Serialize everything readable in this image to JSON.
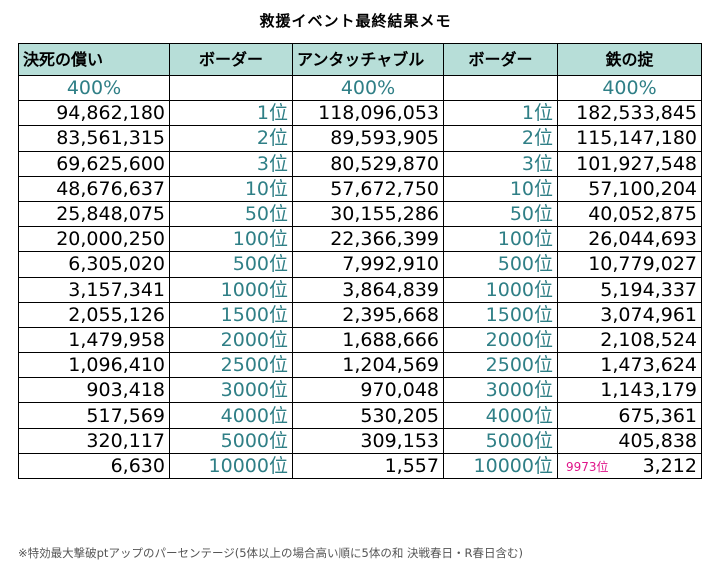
{
  "title": "救援イベント最終結果メモ",
  "headers": [
    "決死の償い",
    "ボーダー",
    "アンタッチャブル",
    "ボーダー",
    "鉄の掟"
  ],
  "percent_row": [
    "400%",
    "",
    "400%",
    "",
    "400%"
  ],
  "rows": [
    {
      "c1": "94,862,180",
      "rank1": "1位",
      "c2": "118,096,053",
      "rank2": "1位",
      "c3": "182,533,845"
    },
    {
      "c1": "83,561,315",
      "rank1": "2位",
      "c2": "89,593,905",
      "rank2": "2位",
      "c3": "115,147,180"
    },
    {
      "c1": "69,625,600",
      "rank1": "3位",
      "c2": "80,529,870",
      "rank2": "3位",
      "c3": "101,927,548"
    },
    {
      "c1": "48,676,637",
      "rank1": "10位",
      "c2": "57,672,750",
      "rank2": "10位",
      "c3": "57,100,204"
    },
    {
      "c1": "25,848,075",
      "rank1": "50位",
      "c2": "30,155,286",
      "rank2": "50位",
      "c3": "40,052,875"
    },
    {
      "c1": "20,000,250",
      "rank1": "100位",
      "c2": "22,366,399",
      "rank2": "100位",
      "c3": "26,044,693"
    },
    {
      "c1": "6,305,020",
      "rank1": "500位",
      "c2": "7,992,910",
      "rank2": "500位",
      "c3": "10,779,027"
    },
    {
      "c1": "3,157,341",
      "rank1": "1000位",
      "c2": "3,864,839",
      "rank2": "1000位",
      "c3": "5,194,337"
    },
    {
      "c1": "2,055,126",
      "rank1": "1500位",
      "c2": "2,395,668",
      "rank2": "1500位",
      "c3": "3,074,961"
    },
    {
      "c1": "1,479,958",
      "rank1": "2000位",
      "c2": "1,688,666",
      "rank2": "2000位",
      "c3": "2,108,524"
    },
    {
      "c1": "1,096,410",
      "rank1": "2500位",
      "c2": "1,204,569",
      "rank2": "2500位",
      "c3": "1,473,624"
    },
    {
      "c1": "903,418",
      "rank1": "3000位",
      "c2": "970,048",
      "rank2": "3000位",
      "c3": "1,143,179"
    },
    {
      "c1": "517,569",
      "rank1": "4000位",
      "c2": "530,205",
      "rank2": "4000位",
      "c3": "675,361"
    },
    {
      "c1": "320,117",
      "rank1": "5000位",
      "c2": "309,153",
      "rank2": "5000位",
      "c3": "405,838"
    },
    {
      "c1": "6,630",
      "rank1": "10000位",
      "c2": "1,557",
      "rank2": "10000位",
      "c3": "3,212",
      "c3_note": "9973位"
    }
  ],
  "footnote": "※特効最大撃破ptアップのパーセンテージ(5体以上の場合高い順に5体の和 決戦春日・R春日含む)",
  "colors": {
    "header_bg": "#b7ded8",
    "rank_text": "#2f7f86",
    "note_text": "#e0148a"
  }
}
